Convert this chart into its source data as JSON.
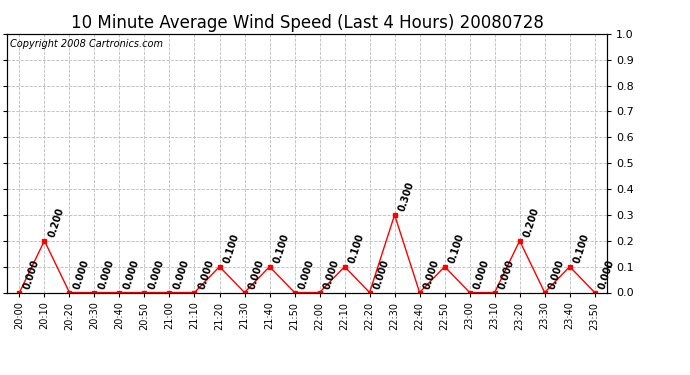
{
  "title": "10 Minute Average Wind Speed (Last 4 Hours) 20080728",
  "copyright": "Copyright 2008 Cartronics.com",
  "x_labels": [
    "20:00",
    "20:10",
    "20:20",
    "20:30",
    "20:40",
    "20:50",
    "21:00",
    "21:10",
    "21:20",
    "21:30",
    "21:40",
    "21:50",
    "22:00",
    "22:10",
    "22:20",
    "22:30",
    "22:40",
    "22:50",
    "23:00",
    "23:10",
    "23:20",
    "23:30",
    "23:40",
    "23:50"
  ],
  "y_values": [
    0.0,
    0.2,
    0.0,
    0.0,
    0.0,
    0.0,
    0.0,
    0.0,
    0.1,
    0.0,
    0.1,
    0.0,
    0.0,
    0.1,
    0.0,
    0.3,
    0.0,
    0.1,
    0.0,
    0.0,
    0.2,
    0.0,
    0.1,
    0.0
  ],
  "line_color": "red",
  "background_color": "#ffffff",
  "plot_bg_color": "#ffffff",
  "grid_color": "#bbbbbb",
  "ylim": [
    0.0,
    1.0
  ],
  "yticks": [
    0.0,
    0.1,
    0.2,
    0.3,
    0.4,
    0.5,
    0.6,
    0.7,
    0.8,
    0.9,
    1.0
  ],
  "title_fontsize": 12,
  "copyright_fontsize": 7,
  "annotation_fontsize": 7
}
